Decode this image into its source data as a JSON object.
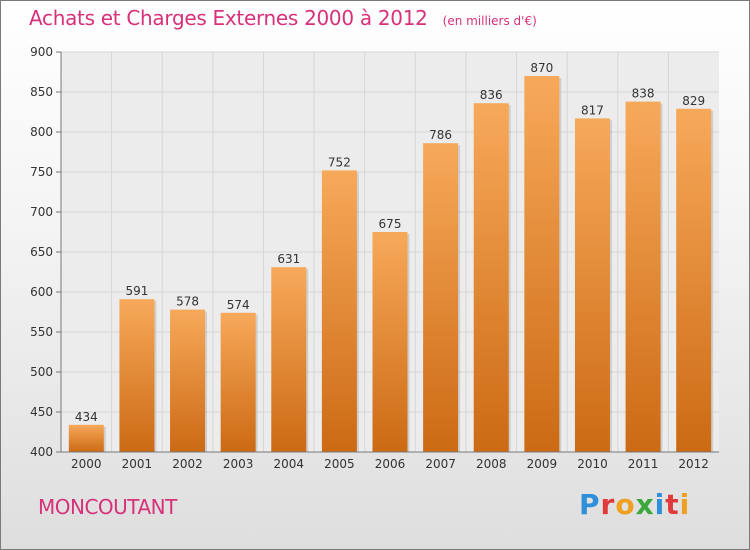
{
  "header": {
    "title": "Achats et Charges Externes 2000 à 2012",
    "unit_note": "(en milliers d'€)"
  },
  "footer": {
    "place": "MONCOUTANT",
    "brand": "Proxiti",
    "brand_colors": [
      "#2f8fd8",
      "#e03a3a",
      "#f0a020",
      "#3aa83a",
      "#2f8fd8",
      "#e03a3a",
      "#f0a020"
    ]
  },
  "colors": {
    "bar_top": "#f7a95a",
    "bar_bottom": "#cc6a14",
    "title": "#d8317a",
    "grid": "#d6d6d6"
  },
  "chart_data": {
    "type": "bar",
    "categories": [
      "2000",
      "2001",
      "2002",
      "2003",
      "2004",
      "2005",
      "2006",
      "2007",
      "2008",
      "2009",
      "2010",
      "2011",
      "2012"
    ],
    "values": [
      434,
      591,
      578,
      574,
      631,
      752,
      675,
      786,
      836,
      870,
      817,
      838,
      829
    ],
    "ylim": [
      400,
      900
    ],
    "yticks": [
      400,
      450,
      500,
      550,
      600,
      650,
      700,
      750,
      800,
      850,
      900
    ],
    "grid": true
  }
}
